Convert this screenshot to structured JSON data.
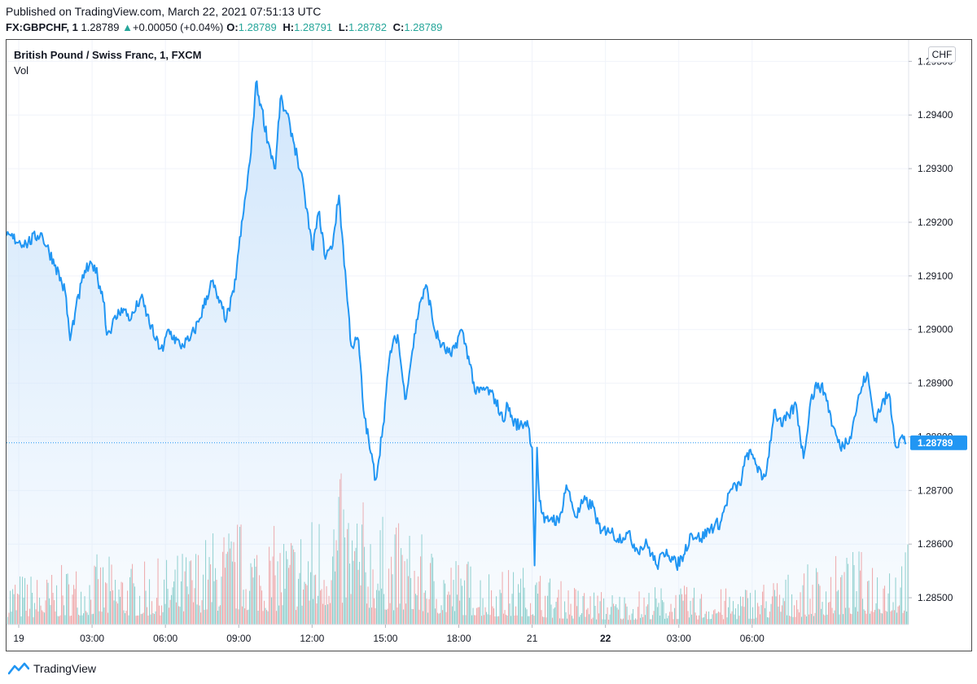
{
  "header": {
    "published": "Published on TradingView.com, March 22, 2021 07:51:13 UTC",
    "symbol": "FX:GBPCHF, 1",
    "last": "1.28789",
    "change_arrow": "▲",
    "change": "+0.00050 (+0.04%)",
    "open_label": "O:",
    "open": "1.28789",
    "high_label": "H:",
    "high": "1.28791",
    "low_label": "L:",
    "low": "1.28782",
    "close_label": "C:",
    "close": "1.28789"
  },
  "legend": {
    "title": "British Pound / Swiss Franc, 1, FXCM",
    "volume_label": "Vol"
  },
  "currency_button": "CHF",
  "footer": {
    "brand": "TradingView",
    "logo_icon": "tradingview-logo-icon"
  },
  "colors": {
    "line": "#2196f3",
    "area_top": "#cfe5fb",
    "up_volume": "#26a69a",
    "down_volume": "#ef5350",
    "last_price_tag": "#2196f3",
    "grid": "#f0f3fa"
  },
  "chart_data": {
    "type": "area",
    "ylim": [
      1.2845,
      1.2954
    ],
    "y_ticks": [
      "1.29500",
      "1.29400",
      "1.29300",
      "1.29200",
      "1.29100",
      "1.29000",
      "1.28900",
      "1.28800",
      "1.28700",
      "1.28600",
      "1.28500"
    ],
    "y_tick_values": [
      1.295,
      1.294,
      1.293,
      1.292,
      1.291,
      1.29,
      1.289,
      1.288,
      1.287,
      1.286,
      1.285
    ],
    "x_range": [
      -0.5,
      36.4
    ],
    "x_ticks": [
      {
        "label": "19",
        "x": 0.0,
        "bold": false
      },
      {
        "label": "03:00",
        "x": 3.0,
        "bold": false
      },
      {
        "label": "06:00",
        "x": 6.0,
        "bold": false
      },
      {
        "label": "09:00",
        "x": 9.0,
        "bold": false
      },
      {
        "label": "12:00",
        "x": 12.0,
        "bold": false
      },
      {
        "label": "15:00",
        "x": 15.0,
        "bold": false
      },
      {
        "label": "18:00",
        "x": 18.0,
        "bold": false
      },
      {
        "label": "21",
        "x": 21.0,
        "bold": false
      },
      {
        "label": "22",
        "x": 24.0,
        "bold": true
      },
      {
        "label": "03:00",
        "x": 27.0,
        "bold": false
      },
      {
        "label": "06:00",
        "x": 30.0,
        "bold": false
      }
    ],
    "last_price": 1.28789,
    "last_price_label": "1.28789",
    "series": [
      {
        "x": [
          -0.5,
          0.3,
          0.9,
          1.5,
          1.9,
          2.1,
          2.3,
          2.7,
          3.1,
          3.5,
          3.6,
          4.2,
          4.6,
          5.0,
          5.6,
          5.9,
          6.1,
          6.6,
          7.0,
          7.4,
          7.9,
          8.2,
          8.5,
          8.8,
          9.0,
          9.2,
          9.5,
          9.7,
          9.9,
          10.2,
          10.5,
          10.7,
          11.1,
          11.4,
          11.7,
          12.0,
          12.3,
          12.5,
          12.8,
          13.1,
          13.4,
          13.6,
          13.9,
          14.1,
          14.4,
          14.6,
          14.9,
          15.2,
          15.5,
          15.8,
          16.1,
          16.4,
          16.7,
          17.0,
          17.3,
          17.7,
          18.1,
          18.4,
          18.7,
          19.1,
          19.5,
          19.8,
          20.0,
          20.2,
          20.5,
          20.8,
          21.0,
          21.1,
          21.2,
          21.3,
          21.5,
          21.8,
          22.1,
          22.4,
          22.8,
          23.1,
          23.5,
          23.8,
          24.1,
          24.5,
          24.9,
          25.3,
          25.7,
          26.1,
          26.5,
          26.9,
          27.2,
          27.5,
          27.9,
          28.3,
          28.7,
          29.1,
          29.5,
          29.8,
          30.1,
          30.4,
          30.6,
          30.9,
          31.2,
          31.5,
          31.8,
          32.1,
          32.4,
          32.7,
          33.0,
          33.3,
          33.6,
          34.0,
          34.4,
          34.7,
          35.0,
          35.3,
          35.6,
          35.9,
          36.1,
          36.3
        ],
        "y": [
          1.29175,
          1.2916,
          1.2918,
          1.2912,
          1.2907,
          1.2898,
          1.2903,
          1.2911,
          1.2912,
          1.2905,
          1.2899,
          1.2904,
          1.2902,
          1.2906,
          1.2898,
          1.2896,
          1.29,
          1.2897,
          1.2898,
          1.2902,
          1.2909,
          1.2905,
          1.2902,
          1.2907,
          1.2915,
          1.2922,
          1.2933,
          1.2946,
          1.2942,
          1.2935,
          1.293,
          1.2943,
          1.2938,
          1.2932,
          1.2925,
          1.2915,
          1.2922,
          1.2914,
          1.2915,
          1.2925,
          1.2908,
          1.2897,
          1.2898,
          1.2885,
          1.2877,
          1.2872,
          1.2882,
          1.2896,
          1.2899,
          1.2887,
          1.2896,
          1.2905,
          1.2908,
          1.29,
          1.2897,
          1.2895,
          1.29,
          1.2895,
          1.2888,
          1.2889,
          1.2887,
          1.2883,
          1.2886,
          1.2883,
          1.2882,
          1.2883,
          1.2878,
          1.2856,
          1.2878,
          1.2868,
          1.2864,
          1.2865,
          1.2864,
          1.2871,
          1.2865,
          1.2868,
          1.2867,
          1.2862,
          1.2863,
          1.2861,
          1.2862,
          1.2859,
          1.286,
          1.2856,
          1.2859,
          1.2856,
          1.2858,
          1.2862,
          1.2861,
          1.2863,
          1.2864,
          1.287,
          1.2871,
          1.2877,
          1.2876,
          1.2872,
          1.2874,
          1.2885,
          1.2882,
          1.2884,
          1.2886,
          1.2876,
          1.2887,
          1.289,
          1.2888,
          1.2882,
          1.2878,
          1.288,
          1.2888,
          1.2892,
          1.2883,
          1.2886,
          1.2888,
          1.2878,
          1.288,
          1.28789
        ]
      }
    ],
    "volume_max": 1.0,
    "volume_profile": {
      "x": [
        -0.5,
        1.0,
        2.0,
        3.0,
        4.0,
        5.0,
        6.0,
        7.0,
        8.0,
        9.0,
        10.0,
        11.0,
        12.0,
        13.0,
        14.0,
        15.0,
        16.0,
        17.0,
        18.0,
        19.0,
        20.0,
        21.0,
        22.0,
        23.0,
        24.0,
        25.0,
        26.0,
        27.0,
        28.0,
        29.0,
        30.0,
        31.0,
        32.0,
        33.0,
        34.0,
        35.0,
        36.3
      ],
      "level": [
        0.2,
        0.18,
        0.22,
        0.25,
        0.24,
        0.22,
        0.24,
        0.28,
        0.35,
        0.38,
        0.34,
        0.36,
        0.4,
        0.55,
        0.45,
        0.38,
        0.35,
        0.28,
        0.25,
        0.22,
        0.2,
        0.22,
        0.16,
        0.14,
        0.12,
        0.12,
        0.14,
        0.14,
        0.13,
        0.13,
        0.15,
        0.18,
        0.2,
        0.24,
        0.26,
        0.28,
        0.3
      ]
    }
  }
}
